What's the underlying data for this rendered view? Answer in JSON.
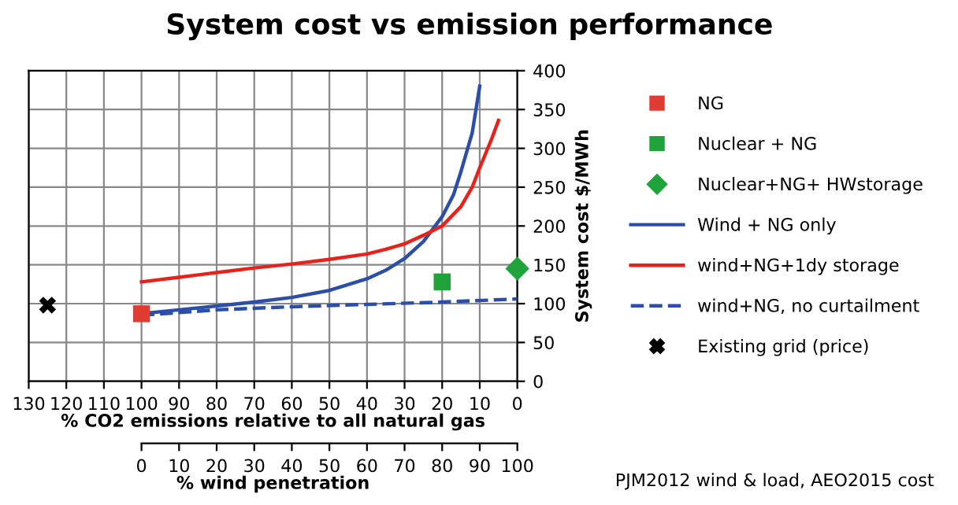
{
  "chart_data": {
    "type": "line",
    "title": "System cost vs emission performance",
    "xlabel": "% CO2 emissions relative to all natural gas",
    "ylabel": "System cost $/MWh",
    "x2label": "% wind penetration",
    "xlim": [
      130,
      0
    ],
    "xticks": [
      130,
      120,
      110,
      100,
      90,
      80,
      70,
      60,
      50,
      40,
      30,
      20,
      10,
      0
    ],
    "x2lim": [
      0,
      100
    ],
    "x2ticks": [
      0,
      10,
      20,
      30,
      40,
      50,
      60,
      70,
      80,
      90,
      100
    ],
    "ylim": [
      0,
      400
    ],
    "yticks": [
      0,
      50,
      100,
      150,
      200,
      250,
      300,
      350,
      400
    ],
    "grid": true,
    "legend": "right",
    "series": [
      {
        "name": "NG",
        "type": "scatter",
        "marker": "square",
        "color": "#e03c31",
        "x": [
          100
        ],
        "values": [
          87
        ]
      },
      {
        "name": "Nuclear + NG",
        "type": "scatter",
        "marker": "square",
        "color": "#1fa33a",
        "x": [
          20
        ],
        "values": [
          128
        ]
      },
      {
        "name": "Nuclear+NG+ HWstorage",
        "type": "scatter",
        "marker": "diamond",
        "color": "#1fa33a",
        "x": [
          0
        ],
        "values": [
          145
        ]
      },
      {
        "name": "Wind + NG only",
        "line_style": "solid",
        "color": "#2b4fa8",
        "x": [
          100,
          90,
          80,
          70,
          60,
          50,
          40,
          35,
          30,
          25,
          20,
          17,
          15,
          12,
          10
        ],
        "values": [
          87,
          92,
          97,
          102,
          108,
          117,
          132,
          143,
          158,
          180,
          212,
          240,
          270,
          320,
          380
        ]
      },
      {
        "name": "wind+NG+1dy storage",
        "line_style": "solid",
        "color": "#e8221b",
        "x": [
          100,
          90,
          80,
          70,
          60,
          50,
          40,
          35,
          30,
          25,
          20,
          15,
          12,
          10,
          7,
          5
        ],
        "values": [
          128,
          134,
          140,
          146,
          151,
          157,
          164,
          170,
          177,
          188,
          200,
          225,
          250,
          275,
          310,
          336
        ]
      },
      {
        "name": "wind+NG, no curtailment",
        "line_style": "dashed",
        "color": "#2b4fa8",
        "x": [
          100,
          80,
          60,
          40,
          20,
          0
        ],
        "values": [
          85,
          92,
          96,
          99,
          102,
          106
        ]
      },
      {
        "name": "Existing grid (price)",
        "type": "scatter",
        "marker": "cross",
        "color": "#000000",
        "x": [
          125
        ],
        "values": [
          98
        ]
      }
    ],
    "annotations": [
      "PJM2012 wind & load, AEO2015 cost"
    ]
  }
}
